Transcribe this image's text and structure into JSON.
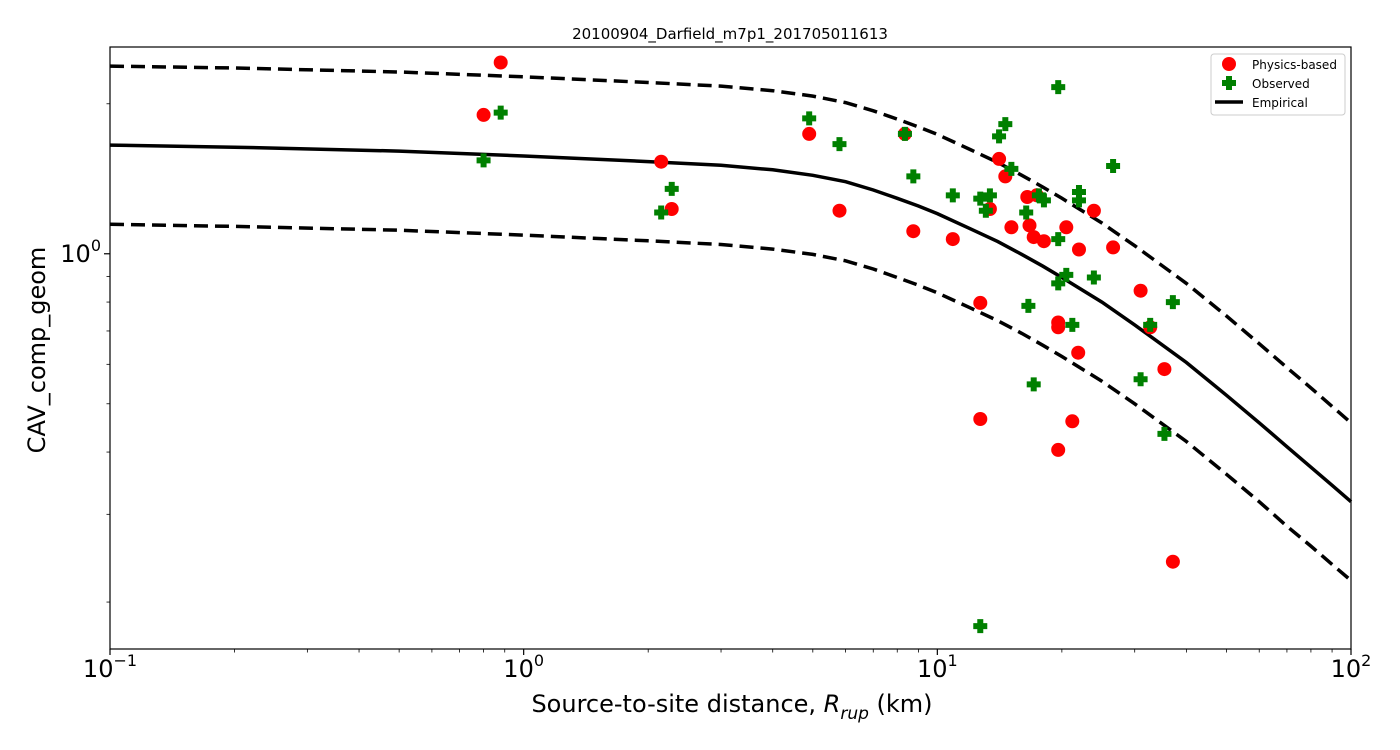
{
  "chart_data": {
    "type": "scatter",
    "title": "20100904_Darfield_m7p1_201705011613",
    "xlabel": "Source-to-site distance, ",
    "xlabel_math": "R",
    "xlabel_sub": "rup",
    "xlabel_unit": " (km)",
    "ylabel": "CAV_comp_geom",
    "xscale": "log",
    "yscale": "log",
    "xlim": [
      0.1,
      100
    ],
    "ylim": [
      0.161,
      2.6
    ],
    "x_ticks": [
      {
        "value": 0.1,
        "base": "10",
        "exp": "−1"
      },
      {
        "value": 1,
        "base": "10",
        "exp": "0"
      },
      {
        "value": 10,
        "base": "10",
        "exp": "1"
      },
      {
        "value": 100,
        "base": "10",
        "exp": "2"
      }
    ],
    "y_ticks": [
      {
        "value": 1,
        "base": "10",
        "exp": "0"
      }
    ],
    "legend": {
      "placement": "upper right",
      "entries": [
        "Physics-based",
        "Observed",
        "Empirical"
      ]
    },
    "colors": {
      "physics": "#ff0000",
      "observed": "#008000",
      "empirical": "#000000"
    },
    "series": [
      {
        "name": "Physics-based",
        "marker": "circle",
        "points": [
          [
            0.8,
            1.9
          ],
          [
            0.88,
            2.42
          ],
          [
            2.15,
            1.53
          ],
          [
            2.28,
            1.23
          ],
          [
            4.9,
            1.74
          ],
          [
            5.8,
            1.22
          ],
          [
            8.35,
            1.74
          ],
          [
            8.75,
            1.11
          ],
          [
            10.9,
            1.07
          ],
          [
            12.7,
            0.797
          ],
          [
            12.7,
            0.466
          ],
          [
            13.4,
            1.23
          ],
          [
            14.1,
            1.55
          ],
          [
            14.6,
            1.43
          ],
          [
            15.1,
            1.13
          ],
          [
            16.5,
            1.3
          ],
          [
            16.7,
            1.14
          ],
          [
            17.1,
            1.08
          ],
          [
            17.4,
            1.31
          ],
          [
            18.1,
            1.06
          ],
          [
            19.6,
            0.728
          ],
          [
            19.6,
            0.712
          ],
          [
            19.6,
            0.404
          ],
          [
            20.5,
            1.13
          ],
          [
            21.2,
            0.461
          ],
          [
            21.9,
            0.633
          ],
          [
            22.0,
            1.02
          ],
          [
            23.9,
            1.22
          ],
          [
            26.6,
            1.03
          ],
          [
            31.0,
            0.843
          ],
          [
            32.7,
            0.712
          ],
          [
            35.4,
            0.587
          ],
          [
            37.1,
            0.241
          ]
        ]
      },
      {
        "name": "Observed",
        "marker": "plus",
        "points": [
          [
            0.8,
            1.54
          ],
          [
            0.88,
            1.92
          ],
          [
            2.15,
            1.21
          ],
          [
            2.28,
            1.35
          ],
          [
            4.9,
            1.87
          ],
          [
            5.8,
            1.66
          ],
          [
            8.35,
            1.74
          ],
          [
            8.75,
            1.43
          ],
          [
            10.9,
            1.31
          ],
          [
            12.7,
            0.179
          ],
          [
            12.7,
            1.29
          ],
          [
            13.1,
            1.22
          ],
          [
            13.4,
            1.31
          ],
          [
            14.1,
            1.72
          ],
          [
            14.6,
            1.82
          ],
          [
            15.1,
            1.48
          ],
          [
            16.4,
            1.21
          ],
          [
            16.6,
            0.786
          ],
          [
            17.1,
            0.547
          ],
          [
            17.6,
            1.31
          ],
          [
            18.1,
            1.28
          ],
          [
            19.6,
            2.16
          ],
          [
            19.6,
            1.07
          ],
          [
            19.6,
            0.872
          ],
          [
            20.5,
            0.907
          ],
          [
            21.2,
            0.72
          ],
          [
            22.0,
            1.28
          ],
          [
            22.0,
            1.33
          ],
          [
            23.9,
            0.896
          ],
          [
            26.6,
            1.5
          ],
          [
            31.0,
            0.56
          ],
          [
            32.7,
            0.72
          ],
          [
            35.4,
            0.435
          ],
          [
            37.1,
            0.8
          ]
        ]
      },
      {
        "name": "Empirical",
        "marker": "line",
        "points": [
          [
            0.1,
            1.652
          ],
          [
            0.2,
            1.636
          ],
          [
            0.5,
            1.607
          ],
          [
            1,
            1.571
          ],
          [
            2,
            1.531
          ],
          [
            3,
            1.505
          ],
          [
            4,
            1.474
          ],
          [
            5,
            1.437
          ],
          [
            6,
            1.395
          ],
          [
            7,
            1.343
          ],
          [
            8,
            1.292
          ],
          [
            9,
            1.247
          ],
          [
            10,
            1.204
          ],
          [
            12,
            1.123
          ],
          [
            14,
            1.058
          ],
          [
            16,
            0.997
          ],
          [
            18,
            0.944
          ],
          [
            20,
            0.896
          ],
          [
            25,
            0.8
          ],
          [
            30,
            0.72
          ],
          [
            40,
            0.605
          ],
          [
            50,
            0.52
          ],
          [
            60,
            0.458
          ],
          [
            70,
            0.41
          ],
          [
            80,
            0.373
          ],
          [
            90,
            0.343
          ],
          [
            100,
            0.318
          ]
        ]
      },
      {
        "name": "",
        "marker": "dashed",
        "points": [
          [
            0.1,
            2.38
          ],
          [
            0.2,
            2.36
          ],
          [
            0.5,
            2.316
          ],
          [
            1,
            2.265
          ],
          [
            2,
            2.207
          ],
          [
            3,
            2.17
          ],
          [
            4,
            2.125
          ],
          [
            5,
            2.072
          ],
          [
            6,
            2.011
          ],
          [
            7,
            1.936
          ],
          [
            8,
            1.863
          ],
          [
            9,
            1.797
          ],
          [
            10,
            1.736
          ],
          [
            12,
            1.619
          ],
          [
            14,
            1.525
          ],
          [
            16,
            1.437
          ],
          [
            18,
            1.361
          ],
          [
            20,
            1.292
          ],
          [
            25,
            1.153
          ],
          [
            30,
            1.038
          ],
          [
            40,
            0.872
          ],
          [
            50,
            0.75
          ],
          [
            60,
            0.66
          ],
          [
            70,
            0.591
          ],
          [
            80,
            0.538
          ],
          [
            90,
            0.494
          ],
          [
            100,
            0.458
          ]
        ]
      },
      {
        "name": "",
        "marker": "dashed",
        "points": [
          [
            0.1,
            1.146
          ],
          [
            0.2,
            1.135
          ],
          [
            0.5,
            1.115
          ],
          [
            1,
            1.09
          ],
          [
            2,
            1.062
          ],
          [
            3,
            1.044
          ],
          [
            4,
            1.022
          ],
          [
            5,
            0.997
          ],
          [
            6,
            0.968
          ],
          [
            7,
            0.932
          ],
          [
            8,
            0.896
          ],
          [
            9,
            0.865
          ],
          [
            10,
            0.835
          ],
          [
            12,
            0.779
          ],
          [
            14,
            0.734
          ],
          [
            16,
            0.692
          ],
          [
            18,
            0.655
          ],
          [
            20,
            0.622
          ],
          [
            25,
            0.555
          ],
          [
            30,
            0.5
          ],
          [
            40,
            0.42
          ],
          [
            50,
            0.361
          ],
          [
            60,
            0.318
          ],
          [
            70,
            0.284
          ],
          [
            80,
            0.259
          ],
          [
            90,
            0.238
          ],
          [
            100,
            0.221
          ]
        ]
      }
    ]
  }
}
